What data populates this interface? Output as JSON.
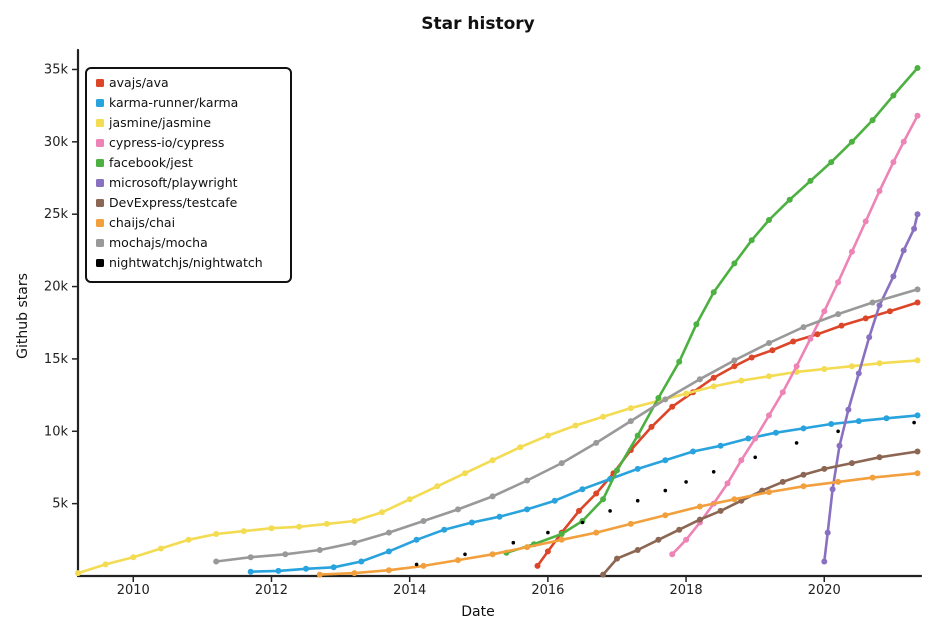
{
  "chart_data": {
    "type": "line",
    "title": "Star history",
    "xlabel": "Date",
    "ylabel": "Github stars",
    "xlim": [
      2009.2,
      2021.4
    ],
    "ylim": [
      0,
      36000
    ],
    "x_ticks": [
      2010,
      2012,
      2014,
      2016,
      2018,
      2020
    ],
    "x_tick_labels": [
      "2010",
      "2012",
      "2014",
      "2016",
      "2018",
      "2020"
    ],
    "y_ticks": [
      5000,
      10000,
      15000,
      20000,
      25000,
      30000,
      35000
    ],
    "y_tick_labels": [
      "5k",
      "10k",
      "15k",
      "20k",
      "25k",
      "30k",
      "35k"
    ],
    "grid": false,
    "legend_position": "top-left",
    "series": [
      {
        "name": "avajs/ava",
        "color": "#dd4528",
        "style": "line",
        "points": [
          [
            2015.85,
            700
          ],
          [
            2016.0,
            1700
          ],
          [
            2016.2,
            3000
          ],
          [
            2016.45,
            4500
          ],
          [
            2016.7,
            5700
          ],
          [
            2016.95,
            7100
          ],
          [
            2017.2,
            8700
          ],
          [
            2017.5,
            10300
          ],
          [
            2017.8,
            11700
          ],
          [
            2018.1,
            12700
          ],
          [
            2018.4,
            13700
          ],
          [
            2018.7,
            14500
          ],
          [
            2018.95,
            15100
          ],
          [
            2019.25,
            15600
          ],
          [
            2019.55,
            16200
          ],
          [
            2019.9,
            16700
          ],
          [
            2020.25,
            17300
          ],
          [
            2020.6,
            17800
          ],
          [
            2020.95,
            18300
          ],
          [
            2021.35,
            18900
          ]
        ]
      },
      {
        "name": "karma-runner/karma",
        "color": "#28a3dd",
        "style": "line",
        "points": [
          [
            2011.7,
            300
          ],
          [
            2012.1,
            350
          ],
          [
            2012.5,
            500
          ],
          [
            2012.9,
            600
          ],
          [
            2013.3,
            1000
          ],
          [
            2013.7,
            1700
          ],
          [
            2014.1,
            2500
          ],
          [
            2014.5,
            3200
          ],
          [
            2014.9,
            3700
          ],
          [
            2015.3,
            4100
          ],
          [
            2015.7,
            4600
          ],
          [
            2016.1,
            5200
          ],
          [
            2016.5,
            6000
          ],
          [
            2016.9,
            6700
          ],
          [
            2017.3,
            7400
          ],
          [
            2017.7,
            8000
          ],
          [
            2018.1,
            8600
          ],
          [
            2018.5,
            9000
          ],
          [
            2018.9,
            9500
          ],
          [
            2019.3,
            9900
          ],
          [
            2019.7,
            10200
          ],
          [
            2020.1,
            10500
          ],
          [
            2020.5,
            10700
          ],
          [
            2020.9,
            10900
          ],
          [
            2021.35,
            11100
          ]
        ]
      },
      {
        "name": "jasmine/jasmine",
        "color": "#f3db52",
        "style": "line",
        "points": [
          [
            2009.2,
            200
          ],
          [
            2009.6,
            800
          ],
          [
            2010.0,
            1300
          ],
          [
            2010.4,
            1900
          ],
          [
            2010.8,
            2500
          ],
          [
            2011.2,
            2900
          ],
          [
            2011.6,
            3100
          ],
          [
            2012.0,
            3300
          ],
          [
            2012.4,
            3400
          ],
          [
            2012.8,
            3600
          ],
          [
            2013.2,
            3800
          ],
          [
            2013.6,
            4400
          ],
          [
            2014.0,
            5300
          ],
          [
            2014.4,
            6200
          ],
          [
            2014.8,
            7100
          ],
          [
            2015.2,
            8000
          ],
          [
            2015.6,
            8900
          ],
          [
            2016.0,
            9700
          ],
          [
            2016.4,
            10400
          ],
          [
            2016.8,
            11000
          ],
          [
            2017.2,
            11600
          ],
          [
            2017.6,
            12100
          ],
          [
            2018.0,
            12600
          ],
          [
            2018.4,
            13100
          ],
          [
            2018.8,
            13500
          ],
          [
            2019.2,
            13800
          ],
          [
            2019.6,
            14100
          ],
          [
            2020.0,
            14300
          ],
          [
            2020.4,
            14500
          ],
          [
            2020.8,
            14700
          ],
          [
            2021.35,
            14900
          ]
        ]
      },
      {
        "name": "cypress-io/cypress",
        "color": "#ed84b5",
        "style": "line",
        "points": [
          [
            2017.8,
            1500
          ],
          [
            2018.0,
            2500
          ],
          [
            2018.2,
            3700
          ],
          [
            2018.4,
            5000
          ],
          [
            2018.6,
            6400
          ],
          [
            2018.8,
            8000
          ],
          [
            2019.0,
            9500
          ],
          [
            2019.2,
            11100
          ],
          [
            2019.4,
            12700
          ],
          [
            2019.6,
            14500
          ],
          [
            2019.8,
            16400
          ],
          [
            2020.0,
            18300
          ],
          [
            2020.2,
            20300
          ],
          [
            2020.4,
            22400
          ],
          [
            2020.6,
            24500
          ],
          [
            2020.8,
            26600
          ],
          [
            2021.0,
            28600
          ],
          [
            2021.15,
            30000
          ],
          [
            2021.35,
            31800
          ]
        ]
      },
      {
        "name": "facebook/jest",
        "color": "#4cb140",
        "style": "line",
        "points": [
          [
            2015.4,
            1600
          ],
          [
            2015.8,
            2200
          ],
          [
            2016.2,
            2900
          ],
          [
            2016.5,
            3800
          ],
          [
            2016.8,
            5300
          ],
          [
            2017.0,
            7300
          ],
          [
            2017.3,
            9700
          ],
          [
            2017.6,
            12300
          ],
          [
            2017.9,
            14800
          ],
          [
            2018.15,
            17400
          ],
          [
            2018.4,
            19600
          ],
          [
            2018.7,
            21600
          ],
          [
            2018.95,
            23200
          ],
          [
            2019.2,
            24600
          ],
          [
            2019.5,
            26000
          ],
          [
            2019.8,
            27300
          ],
          [
            2020.1,
            28600
          ],
          [
            2020.4,
            30000
          ],
          [
            2020.7,
            31500
          ],
          [
            2021.0,
            33200
          ],
          [
            2021.35,
            35100
          ]
        ]
      },
      {
        "name": "microsoft/playwright",
        "color": "#8a70c0",
        "style": "line",
        "points": [
          [
            2020.0,
            1000
          ],
          [
            2020.05,
            3000
          ],
          [
            2020.12,
            6000
          ],
          [
            2020.22,
            9000
          ],
          [
            2020.35,
            11500
          ],
          [
            2020.5,
            14000
          ],
          [
            2020.65,
            16500
          ],
          [
            2020.8,
            18700
          ],
          [
            2021.0,
            20700
          ],
          [
            2021.15,
            22500
          ],
          [
            2021.3,
            24000
          ],
          [
            2021.35,
            25000
          ]
        ]
      },
      {
        "name": "DevExpress/testcafe",
        "color": "#8b6652",
        "style": "line",
        "points": [
          [
            2016.8,
            100
          ],
          [
            2017.0,
            1200
          ],
          [
            2017.3,
            1800
          ],
          [
            2017.6,
            2500
          ],
          [
            2017.9,
            3200
          ],
          [
            2018.2,
            3900
          ],
          [
            2018.5,
            4500
          ],
          [
            2018.8,
            5200
          ],
          [
            2019.1,
            5900
          ],
          [
            2019.4,
            6500
          ],
          [
            2019.7,
            7000
          ],
          [
            2020.0,
            7400
          ],
          [
            2020.4,
            7800
          ],
          [
            2020.8,
            8200
          ],
          [
            2021.35,
            8600
          ]
        ]
      },
      {
        "name": "chaijs/chai",
        "color": "#f2a03d",
        "style": "line",
        "points": [
          [
            2012.7,
            100
          ],
          [
            2013.2,
            200
          ],
          [
            2013.7,
            400
          ],
          [
            2014.2,
            700
          ],
          [
            2014.7,
            1100
          ],
          [
            2015.2,
            1500
          ],
          [
            2015.7,
            2000
          ],
          [
            2016.2,
            2500
          ],
          [
            2016.7,
            3000
          ],
          [
            2017.2,
            3600
          ],
          [
            2017.7,
            4200
          ],
          [
            2018.2,
            4800
          ],
          [
            2018.7,
            5300
          ],
          [
            2019.2,
            5800
          ],
          [
            2019.7,
            6200
          ],
          [
            2020.2,
            6500
          ],
          [
            2020.7,
            6800
          ],
          [
            2021.35,
            7100
          ]
        ]
      },
      {
        "name": "mochajs/mocha",
        "color": "#999999",
        "style": "line",
        "points": [
          [
            2011.2,
            1000
          ],
          [
            2011.7,
            1300
          ],
          [
            2012.2,
            1500
          ],
          [
            2012.7,
            1800
          ],
          [
            2013.2,
            2300
          ],
          [
            2013.7,
            3000
          ],
          [
            2014.2,
            3800
          ],
          [
            2014.7,
            4600
          ],
          [
            2015.2,
            5500
          ],
          [
            2015.7,
            6600
          ],
          [
            2016.2,
            7800
          ],
          [
            2016.7,
            9200
          ],
          [
            2017.2,
            10700
          ],
          [
            2017.7,
            12200
          ],
          [
            2018.2,
            13600
          ],
          [
            2018.7,
            14900
          ],
          [
            2019.2,
            16100
          ],
          [
            2019.7,
            17200
          ],
          [
            2020.2,
            18100
          ],
          [
            2020.7,
            18900
          ],
          [
            2021.35,
            19800
          ]
        ]
      },
      {
        "name": "nightwatchjs/nightwatch",
        "color": "#000000",
        "style": "scatter",
        "points": [
          [
            2014.1,
            800
          ],
          [
            2014.8,
            1500
          ],
          [
            2015.5,
            2300
          ],
          [
            2016.0,
            3000
          ],
          [
            2016.5,
            3700
          ],
          [
            2016.9,
            4500
          ],
          [
            2017.3,
            5200
          ],
          [
            2017.7,
            5900
          ],
          [
            2018.0,
            6500
          ],
          [
            2018.4,
            7200
          ],
          [
            2019.0,
            8200
          ],
          [
            2019.6,
            9200
          ],
          [
            2020.2,
            10000
          ],
          [
            2021.3,
            10600
          ]
        ]
      }
    ]
  }
}
